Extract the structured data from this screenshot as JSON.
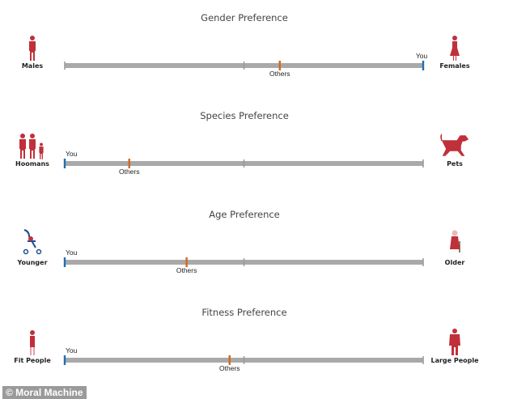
{
  "chart_data": [
    {
      "type": "scale",
      "title": "Gender Preference",
      "left_label": "Males",
      "right_label": "Females",
      "left_icon": "man-icon",
      "right_icon": "woman-icon",
      "markers": [
        {
          "label": "You",
          "value": 1.0,
          "color": "#1f6fb5"
        },
        {
          "label": "Others",
          "value": 0.6,
          "color": "#d2691e"
        }
      ],
      "range": [
        0,
        1
      ]
    },
    {
      "type": "scale",
      "title": "Species Preference",
      "left_label": "Hoomans",
      "right_label": "Pets",
      "left_icon": "family-icon",
      "right_icon": "dog-icon",
      "markers": [
        {
          "label": "You",
          "value": 0.0,
          "color": "#1f6fb5"
        },
        {
          "label": "Others",
          "value": 0.18,
          "color": "#d2691e"
        }
      ],
      "range": [
        0,
        1
      ]
    },
    {
      "type": "scale",
      "title": "Age Preference",
      "left_label": "Younger",
      "right_label": "Older",
      "left_icon": "stroller-icon",
      "right_icon": "elderly-woman-icon",
      "markers": [
        {
          "label": "You",
          "value": 0.0,
          "color": "#1f6fb5"
        },
        {
          "label": "Others",
          "value": 0.34,
          "color": "#d2691e"
        }
      ],
      "range": [
        0,
        1
      ]
    },
    {
      "type": "scale",
      "title": "Fitness Preference",
      "left_label": "Fit People",
      "right_label": "Large People",
      "left_icon": "athlete-icon",
      "right_icon": "large-person-icon",
      "markers": [
        {
          "label": "You",
          "value": 0.0,
          "color": "#1f6fb5"
        },
        {
          "label": "Others",
          "value": 0.46,
          "color": "#d2691e"
        }
      ],
      "range": [
        0,
        1
      ]
    }
  ],
  "colors": {
    "bar": "#a9a9a9",
    "icon": "#c0303a",
    "you": "#1f6fb5",
    "others": "#d2691e"
  },
  "credit": "© Moral Machine"
}
